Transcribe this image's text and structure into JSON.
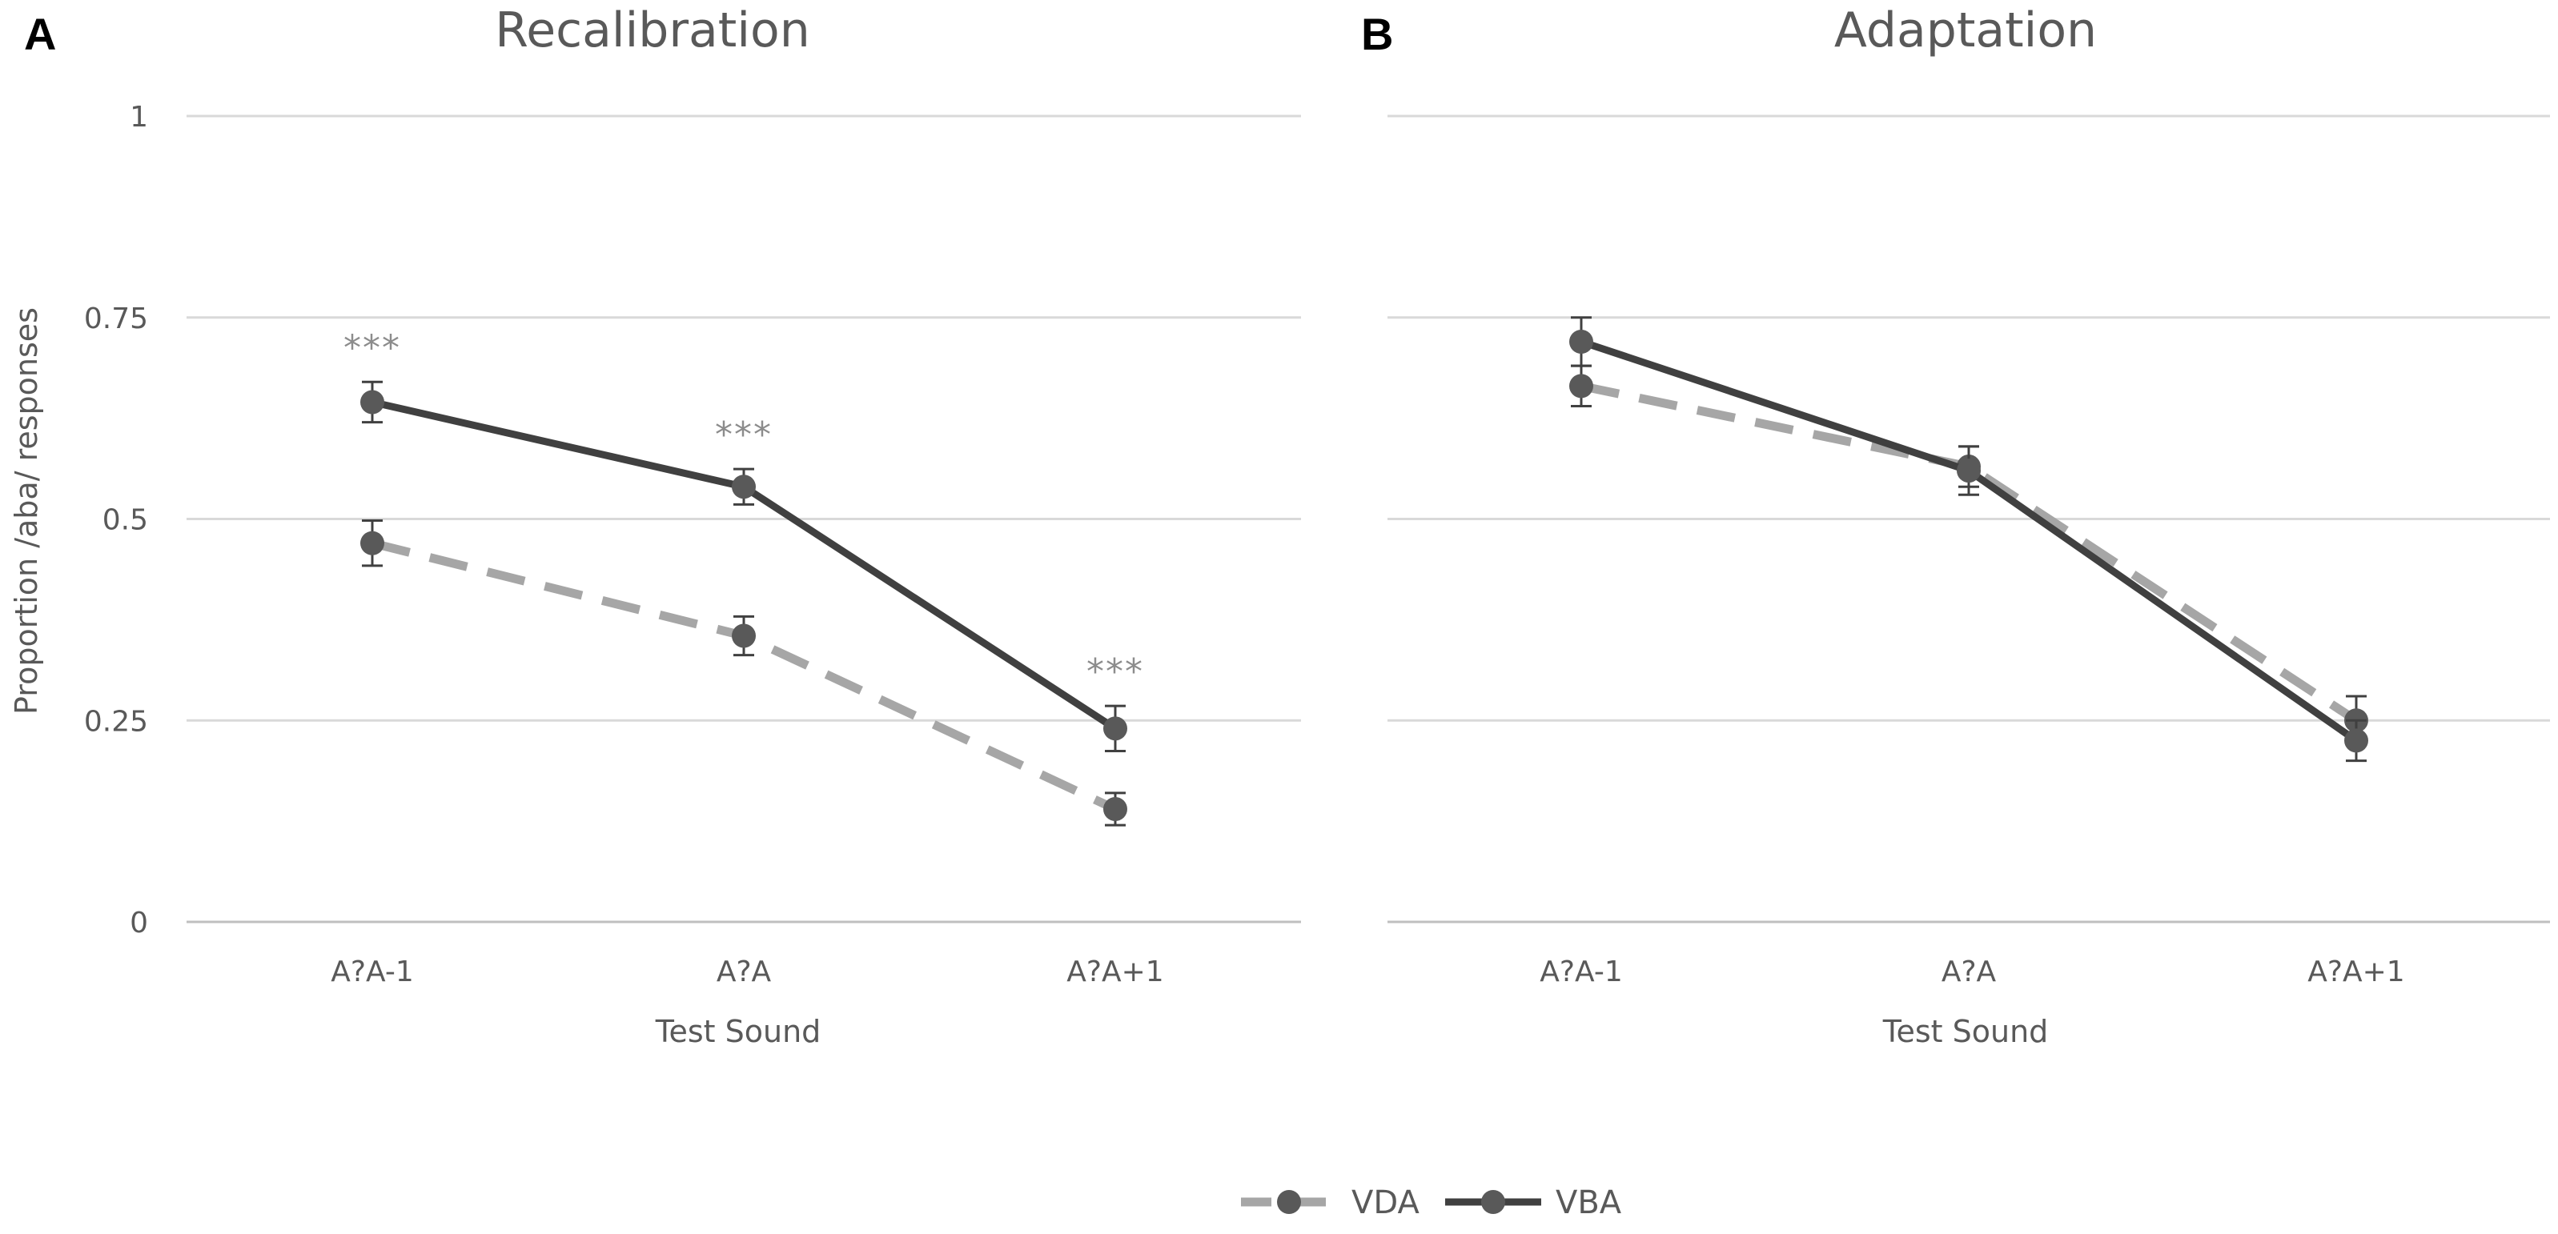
{
  "chart_data": [
    {
      "type": "line",
      "panel_label": "A",
      "title": "Recalibration",
      "xlabel": "Test Sound",
      "ylabel": "Proportion /aba/ responses",
      "categories": [
        "A?A-1",
        "A?A",
        "A?A+1"
      ],
      "ylim": [
        0,
        1
      ],
      "yticks": [
        0,
        0.25,
        0.5,
        0.75,
        1
      ],
      "ytick_labels": [
        "0",
        "0.25",
        "0.5",
        "0.75",
        "1"
      ],
      "grid": true,
      "series": [
        {
          "name": "VDA",
          "values": [
            0.47,
            0.355,
            0.14
          ],
          "errors": [
            0.028,
            0.024,
            0.02
          ],
          "style": "dashed",
          "color": "#a6a6a6"
        },
        {
          "name": "VBA",
          "values": [
            0.645,
            0.54,
            0.24
          ],
          "errors": [
            0.025,
            0.022,
            0.028
          ],
          "style": "solid",
          "color": "#404040"
        }
      ],
      "annotations": [
        {
          "category": "A?A-1",
          "text": "***"
        },
        {
          "category": "A?A",
          "text": "***"
        },
        {
          "category": "A?A+1",
          "text": "***"
        }
      ]
    },
    {
      "type": "line",
      "panel_label": "B",
      "title": "Adaptation",
      "xlabel": "Test Sound",
      "ylabel": "",
      "categories": [
        "A?A-1",
        "A?A",
        "A?A+1"
      ],
      "ylim": [
        0,
        1
      ],
      "yticks": [
        0,
        0.25,
        0.5,
        0.75,
        1
      ],
      "grid": true,
      "series": [
        {
          "name": "VDA",
          "values": [
            0.665,
            0.565,
            0.25
          ],
          "errors": [
            0.025,
            0.025,
            0.03
          ],
          "style": "dashed",
          "color": "#a6a6a6"
        },
        {
          "name": "VBA",
          "values": [
            0.72,
            0.56,
            0.225
          ],
          "errors": [
            0.03,
            0.03,
            0.025
          ],
          "style": "solid",
          "color": "#404040"
        }
      ],
      "annotations": []
    }
  ],
  "legend": {
    "position": "bottom-center",
    "entries": [
      {
        "name": "VDA",
        "style": "dashed",
        "color": "#a6a6a6"
      },
      {
        "name": "VBA",
        "style": "solid",
        "color": "#404040"
      }
    ]
  },
  "colors": {
    "marker": "#595959",
    "error_bar": "#404040",
    "grid": "#d9d9d9",
    "annotation": "#8c8c8c"
  }
}
